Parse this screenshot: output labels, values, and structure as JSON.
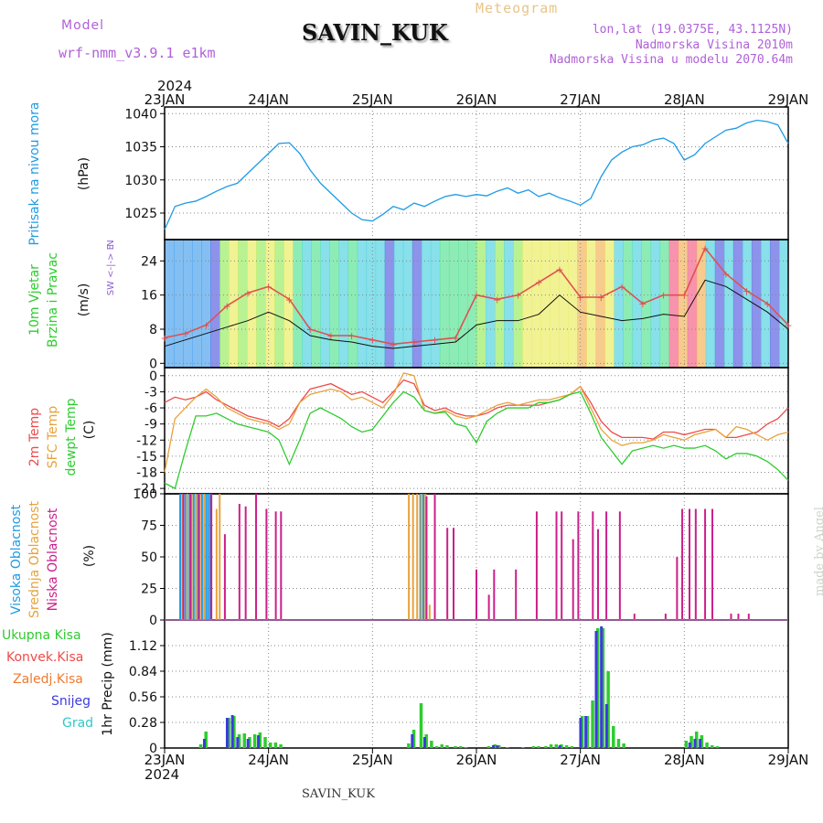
{
  "header": {
    "model_label": "Model",
    "model_name": "wrf-nmm_v3.9.1 e1km",
    "station": "SAVIN_KUK",
    "chart_kind": "Meteogram",
    "lonlat": "lon,lat (19.0375E, 43.1125N)",
    "elevation": "Nadmorska Visina 2010m",
    "model_elevation": "Nadmorska Visina u modelu 2070.64m",
    "watermark": "made by Angel",
    "footer_station": "SAVIN_KUK"
  },
  "time_axis": {
    "year": "2024",
    "ticks": [
      "23JAN",
      "24JAN",
      "25JAN",
      "26JAN",
      "27JAN",
      "28JAN",
      "29JAN"
    ]
  },
  "colors": {
    "pressure": "#1e9be6",
    "temp2m": "#f04a4a",
    "sfc_temp": "#e8a23a",
    "dewpt": "#2ecc2e",
    "cloud_high": "#1e9be6",
    "cloud_mid": "#e8a23a",
    "cloud_low": "#cc1f8a",
    "precip_total": "#2ecc2e",
    "precip_conv": "#f04a4a",
    "precip_frz": "#f07a30",
    "precip_snow": "#3a3adc",
    "precip_grad": "#2ec8c8"
  },
  "chart_data": [
    {
      "type": "line",
      "panel": "pressure",
      "ylabel_main": "Pritisak na nivou mora",
      "ylabel_unit": "(hPa)",
      "ylim": [
        1021,
        1041
      ],
      "yticks": [
        "1025",
        "1030",
        "1035",
        "1040"
      ],
      "grid": true,
      "x_unit": "days since 23JAN 00UTC",
      "series": [
        {
          "name": "Pritisak na nivou mora",
          "x": [
            0,
            0.1,
            0.2,
            0.3,
            0.4,
            0.5,
            0.6,
            0.7,
            0.8,
            0.9,
            1.0,
            1.1,
            1.2,
            1.3,
            1.4,
            1.5,
            1.6,
            1.7,
            1.8,
            1.9,
            2.0,
            2.1,
            2.2,
            2.3,
            2.4,
            2.5,
            2.6,
            2.7,
            2.8,
            2.9,
            3.0,
            3.1,
            3.2,
            3.3,
            3.4,
            3.5,
            3.6,
            3.7,
            3.8,
            3.9,
            4.0,
            4.1,
            4.2,
            4.3,
            4.4,
            4.5,
            4.6,
            4.7,
            4.8,
            4.9,
            5.0,
            5.1,
            5.2,
            5.3,
            5.4,
            5.5,
            5.6,
            5.7,
            5.8,
            5.9,
            6.0
          ],
          "y": [
            1022.5,
            1026.0,
            1026.5,
            1026.8,
            1027.5,
            1028.3,
            1029.0,
            1029.5,
            1031.0,
            1032.5,
            1034.0,
            1035.5,
            1035.6,
            1034.0,
            1031.5,
            1029.5,
            1028.0,
            1026.5,
            1025.0,
            1024.0,
            1023.8,
            1024.8,
            1026.0,
            1025.5,
            1026.5,
            1026.0,
            1026.8,
            1027.5,
            1027.8,
            1027.5,
            1027.8,
            1027.6,
            1028.3,
            1028.8,
            1028.0,
            1028.5,
            1027.5,
            1028.0,
            1027.3,
            1026.8,
            1026.2,
            1027.2,
            1030.5,
            1033.0,
            1034.2,
            1035.0,
            1035.3,
            1036.0,
            1036.3,
            1035.5,
            1033.0,
            1033.8,
            1035.5,
            1036.5,
            1037.5,
            1037.8,
            1038.6,
            1039.0,
            1038.8,
            1038.3,
            1035.5
          ]
        }
      ]
    },
    {
      "type": "line",
      "panel": "wind",
      "ylabel_main": "10m Vjetar",
      "ylabel_sub": "Brzina i Pravac",
      "ylabel_unit": "(m/s)",
      "compass": "N",
      "compass_axis": "W <-|-> E",
      "compass_s": "S",
      "ylim": [
        -1,
        29
      ],
      "yticks": [
        "0",
        "8",
        "16",
        "24"
      ],
      "grid": true,
      "x_unit": "days since 23JAN 00UTC",
      "series": [
        {
          "name": "gust",
          "x": [
            0,
            0.2,
            0.4,
            0.6,
            0.8,
            1.0,
            1.2,
            1.4,
            1.6,
            1.8,
            2.0,
            2.2,
            2.4,
            2.6,
            2.8,
            3.0,
            3.2,
            3.4,
            3.6,
            3.8,
            4.0,
            4.2,
            4.4,
            4.6,
            4.8,
            5.0,
            5.2,
            5.4,
            5.6,
            5.8,
            6.0
          ],
          "y": [
            6.0,
            7.0,
            9.0,
            13.5,
            16.5,
            18.0,
            15.0,
            8.0,
            6.5,
            6.5,
            5.5,
            4.5,
            5.0,
            5.5,
            6.0,
            16.0,
            15.0,
            16.0,
            19.0,
            22.0,
            15.5,
            15.5,
            18.0,
            14.0,
            16.0,
            16.0,
            27.0,
            21.0,
            17.0,
            14.0,
            9.0
          ]
        },
        {
          "name": "mean",
          "x": [
            0,
            0.2,
            0.4,
            0.6,
            0.8,
            1.0,
            1.2,
            1.4,
            1.6,
            1.8,
            2.0,
            2.2,
            2.4,
            2.6,
            2.8,
            3.0,
            3.2,
            3.4,
            3.6,
            3.8,
            4.0,
            4.2,
            4.4,
            4.6,
            4.8,
            5.0,
            5.2,
            5.4,
            5.6,
            5.8,
            6.0
          ],
          "y": [
            4.0,
            5.5,
            7.0,
            8.5,
            10.0,
            12.0,
            10.0,
            6.5,
            5.5,
            5.0,
            4.0,
            3.5,
            4.0,
            4.5,
            5.0,
            9.0,
            10.0,
            10.0,
            11.5,
            16.0,
            12.0,
            11.0,
            10.0,
            10.5,
            11.5,
            11.0,
            19.5,
            18.0,
            15.0,
            12.0,
            8.0
          ]
        }
      ]
    },
    {
      "type": "line",
      "panel": "temperature",
      "ylabel_main": "2m Temp",
      "ylabel_sfc": "SFC Temp",
      "ylabel_dew": "dewpt Temp",
      "ylabel_unit": "(C)",
      "ylim": [
        -22,
        1.5
      ],
      "yticks": [
        "0",
        "-3",
        "-6",
        "-9",
        "-12",
        "-15",
        "-18",
        "-21"
      ],
      "grid": true,
      "x_unit": "days since 23JAN 00UTC",
      "series": [
        {
          "name": "2m Temp",
          "x": [
            0,
            0.1,
            0.2,
            0.3,
            0.4,
            0.5,
            0.6,
            0.7,
            0.8,
            0.9,
            1.0,
            1.1,
            1.2,
            1.3,
            1.4,
            1.5,
            1.6,
            1.7,
            1.8,
            1.9,
            2.0,
            2.1,
            2.2,
            2.3,
            2.4,
            2.5,
            2.6,
            2.7,
            2.8,
            2.9,
            3.0,
            3.1,
            3.2,
            3.3,
            3.4,
            3.5,
            3.6,
            3.7,
            3.8,
            3.9,
            4.0,
            4.1,
            4.2,
            4.3,
            4.4,
            4.5,
            4.6,
            4.7,
            4.8,
            4.9,
            5.0,
            5.1,
            5.2,
            5.3,
            5.4,
            5.5,
            5.6,
            5.7,
            5.8,
            5.9,
            6.0
          ],
          "y": [
            -5.0,
            -4.0,
            -4.5,
            -4.0,
            -3.0,
            -4.5,
            -5.5,
            -6.5,
            -7.5,
            -8.0,
            -8.5,
            -9.5,
            -8.0,
            -5.0,
            -2.5,
            -2.0,
            -1.5,
            -2.5,
            -3.5,
            -3.0,
            -4.0,
            -5.0,
            -3.0,
            -0.8,
            -1.5,
            -5.5,
            -6.5,
            -6.0,
            -7.0,
            -7.5,
            -7.5,
            -7.0,
            -6.0,
            -5.5,
            -5.5,
            -5.5,
            -5.5,
            -5.0,
            -4.5,
            -3.5,
            -2.0,
            -5.0,
            -8.5,
            -10.5,
            -11.5,
            -11.5,
            -11.5,
            -11.8,
            -10.5,
            -10.5,
            -11.0,
            -10.5,
            -10.0,
            -10.0,
            -11.5,
            -11.5,
            -11.0,
            -10.5,
            -9.0,
            -8.0,
            -6.0
          ]
        },
        {
          "name": "SFC Temp",
          "x": [
            0,
            0.1,
            0.2,
            0.3,
            0.4,
            0.5,
            0.6,
            0.7,
            0.8,
            0.9,
            1.0,
            1.1,
            1.2,
            1.3,
            1.4,
            1.5,
            1.6,
            1.7,
            1.8,
            1.9,
            2.0,
            2.1,
            2.2,
            2.3,
            2.4,
            2.5,
            2.6,
            2.7,
            2.8,
            2.9,
            3.0,
            3.1,
            3.2,
            3.3,
            3.4,
            3.5,
            3.6,
            3.7,
            3.8,
            3.9,
            4.0,
            4.1,
            4.2,
            4.3,
            4.4,
            4.5,
            4.6,
            4.7,
            4.8,
            4.9,
            5.0,
            5.1,
            5.2,
            5.3,
            5.4,
            5.5,
            5.6,
            5.7,
            5.8,
            5.9,
            6.0
          ],
          "y": [
            -18.0,
            -8.0,
            -6.0,
            -4.0,
            -2.5,
            -4.0,
            -6.0,
            -7.0,
            -8.0,
            -8.5,
            -9.0,
            -10.0,
            -9.0,
            -5.0,
            -3.5,
            -3.0,
            -2.5,
            -3.0,
            -4.5,
            -4.0,
            -5.0,
            -6.0,
            -3.5,
            0.5,
            0.0,
            -6.5,
            -7.0,
            -6.5,
            -7.5,
            -8.0,
            -7.5,
            -6.5,
            -5.5,
            -5.0,
            -5.5,
            -5.0,
            -4.5,
            -4.5,
            -4.0,
            -3.5,
            -2.0,
            -6.0,
            -10.0,
            -12.0,
            -13.0,
            -12.5,
            -12.5,
            -12.0,
            -11.0,
            -11.5,
            -12.0,
            -11.0,
            -10.5,
            -10.0,
            -11.5,
            -9.5,
            -10.0,
            -11.0,
            -12.0,
            -11.0,
            -10.5
          ]
        },
        {
          "name": "dewpt Temp",
          "x": [
            0,
            0.1,
            0.2,
            0.3,
            0.4,
            0.5,
            0.6,
            0.7,
            0.8,
            0.9,
            1.0,
            1.1,
            1.2,
            1.3,
            1.4,
            1.5,
            1.6,
            1.7,
            1.8,
            1.9,
            2.0,
            2.1,
            2.2,
            2.3,
            2.4,
            2.5,
            2.6,
            2.7,
            2.8,
            2.9,
            3.0,
            3.1,
            3.2,
            3.3,
            3.4,
            3.5,
            3.6,
            3.7,
            3.8,
            3.9,
            4.0,
            4.1,
            4.2,
            4.3,
            4.4,
            4.5,
            4.6,
            4.7,
            4.8,
            4.9,
            5.0,
            5.1,
            5.2,
            5.3,
            5.4,
            5.5,
            5.6,
            5.7,
            5.8,
            5.9,
            6.0
          ],
          "y": [
            -20.0,
            -21.0,
            -14.0,
            -7.5,
            -7.5,
            -7.0,
            -8.0,
            -9.0,
            -9.5,
            -10.0,
            -10.5,
            -12.0,
            -16.5,
            -12.0,
            -7.0,
            -6.0,
            -7.0,
            -8.0,
            -9.5,
            -10.5,
            -10.0,
            -7.5,
            -5.0,
            -3.0,
            -4.0,
            -6.5,
            -7.0,
            -6.8,
            -9.0,
            -9.5,
            -12.5,
            -8.5,
            -7.0,
            -6.0,
            -6.0,
            -6.0,
            -5.0,
            -5.0,
            -4.5,
            -3.5,
            -3.0,
            -7.0,
            -11.5,
            -14.0,
            -16.5,
            -14.0,
            -13.5,
            -13.0,
            -13.5,
            -13.0,
            -13.5,
            -13.5,
            -13.0,
            -14.0,
            -15.5,
            -14.5,
            -14.5,
            -15.0,
            -16.0,
            -17.5,
            -19.5
          ]
        }
      ]
    },
    {
      "type": "bar",
      "panel": "cloud",
      "ylabel_high": "Visoka Oblacnost",
      "ylabel_mid": "Srednja Oblacnost",
      "ylabel_low": "Niska Oblacnost",
      "ylabel_unit": "(%)",
      "ylim": [
        0,
        100
      ],
      "yticks": [
        "0",
        "25",
        "50",
        "75",
        "100"
      ],
      "grid": true,
      "x_unit": "days since 23JAN 00UTC",
      "series": [
        {
          "name": "Visoka Oblacnost",
          "x": [
            0.15,
            0.2,
            0.24,
            0.28,
            0.32,
            0.36,
            0.4,
            0.42,
            0.44,
            2.46,
            2.49
          ],
          "y": [
            100,
            100,
            100,
            100,
            100,
            100,
            100,
            100,
            100,
            100,
            100
          ]
        },
        {
          "name": "Srednja Oblacnost",
          "x": [
            0.17,
            0.22,
            0.26,
            0.3,
            0.34,
            0.38,
            0.5,
            0.53,
            2.35,
            2.39,
            2.43,
            2.47,
            2.51,
            2.55
          ],
          "y": [
            100,
            100,
            100,
            100,
            100,
            100,
            88,
            100,
            100,
            100,
            100,
            100,
            100,
            12
          ]
        },
        {
          "name": "Niska Oblacnost",
          "x": [
            0.18,
            0.25,
            0.33,
            0.45,
            0.58,
            0.72,
            0.78,
            0.88,
            0.98,
            1.07,
            1.12,
            2.52,
            2.6,
            2.72,
            2.78,
            3.0,
            3.12,
            3.17,
            3.38,
            3.58,
            3.77,
            3.82,
            3.93,
            3.98,
            4.12,
            4.17,
            4.25,
            4.38,
            4.52,
            4.82,
            4.93,
            4.98,
            5.05,
            5.11,
            5.2,
            5.27,
            5.45,
            5.52,
            5.62
          ],
          "y": [
            100,
            100,
            100,
            100,
            68,
            92,
            90,
            100,
            88,
            86,
            86,
            98,
            100,
            73,
            73,
            40,
            20,
            40,
            40,
            86,
            86,
            86,
            64,
            86,
            86,
            72,
            86,
            86,
            5,
            5,
            50,
            88,
            88,
            88,
            88,
            88,
            5,
            5,
            5
          ]
        }
      ]
    },
    {
      "type": "bar",
      "panel": "precip",
      "ylabel_main": "1hr Precip",
      "ylabel_unit": "(mm)",
      "legend": [
        "Ukupna Kisa",
        "Konvek.Kisa",
        "Zaledj.Kisa",
        "Snijeg",
        "Grad"
      ],
      "ylim": [
        0,
        1.4
      ],
      "yticks": [
        "0",
        "0.28",
        "0.56",
        "0.84",
        "1.12"
      ],
      "grid": true,
      "x_unit": "days since 23JAN 00UTC",
      "series": [
        {
          "name": "Ukupna Kisa",
          "x": [
            0.35,
            0.4,
            0.62,
            0.67,
            0.72,
            0.77,
            0.82,
            0.87,
            0.92,
            0.97,
            1.02,
            1.07,
            1.12,
            2.35,
            2.4,
            2.47,
            2.52,
            2.57,
            2.62,
            2.67,
            2.72,
            2.8,
            2.85,
            2.9,
            3.12,
            3.18,
            3.22,
            3.3,
            3.45,
            3.55,
            3.6,
            3.67,
            3.72,
            3.77,
            3.82,
            3.87,
            3.92,
            4.02,
            4.07,
            4.12,
            4.17,
            4.22,
            4.27,
            4.32,
            4.37,
            4.42,
            5.02,
            5.07,
            5.12,
            5.17,
            5.22,
            5.27,
            5.32
          ],
          "y": [
            0.04,
            0.18,
            0.33,
            0.35,
            0.15,
            0.16,
            0.12,
            0.15,
            0.17,
            0.12,
            0.06,
            0.06,
            0.04,
            0.05,
            0.2,
            0.49,
            0.15,
            0.08,
            0.02,
            0.04,
            0.03,
            0.02,
            0.02,
            0.01,
            0.02,
            0.04,
            0.03,
            0.01,
            0.01,
            0.02,
            0.02,
            0.02,
            0.04,
            0.04,
            0.04,
            0.03,
            0.02,
            0.35,
            0.35,
            0.52,
            1.31,
            1.31,
            0.84,
            0.24,
            0.1,
            0.05,
            0.08,
            0.13,
            0.18,
            0.14,
            0.06,
            0.03,
            0.02
          ]
        },
        {
          "name": "Snijeg",
          "x": [
            0.4,
            0.62,
            0.67,
            0.72,
            0.82,
            0.92,
            2.4,
            2.52,
            3.18,
            3.22,
            3.82,
            4.02,
            4.07,
            4.17,
            4.22,
            4.27,
            5.07,
            5.12,
            5.17
          ],
          "y": [
            0.1,
            0.33,
            0.36,
            0.12,
            0.1,
            0.14,
            0.15,
            0.12,
            0.03,
            0.03,
            0.03,
            0.33,
            0.35,
            1.28,
            1.33,
            0.48,
            0.06,
            0.1,
            0.1
          ]
        }
      ]
    }
  ]
}
